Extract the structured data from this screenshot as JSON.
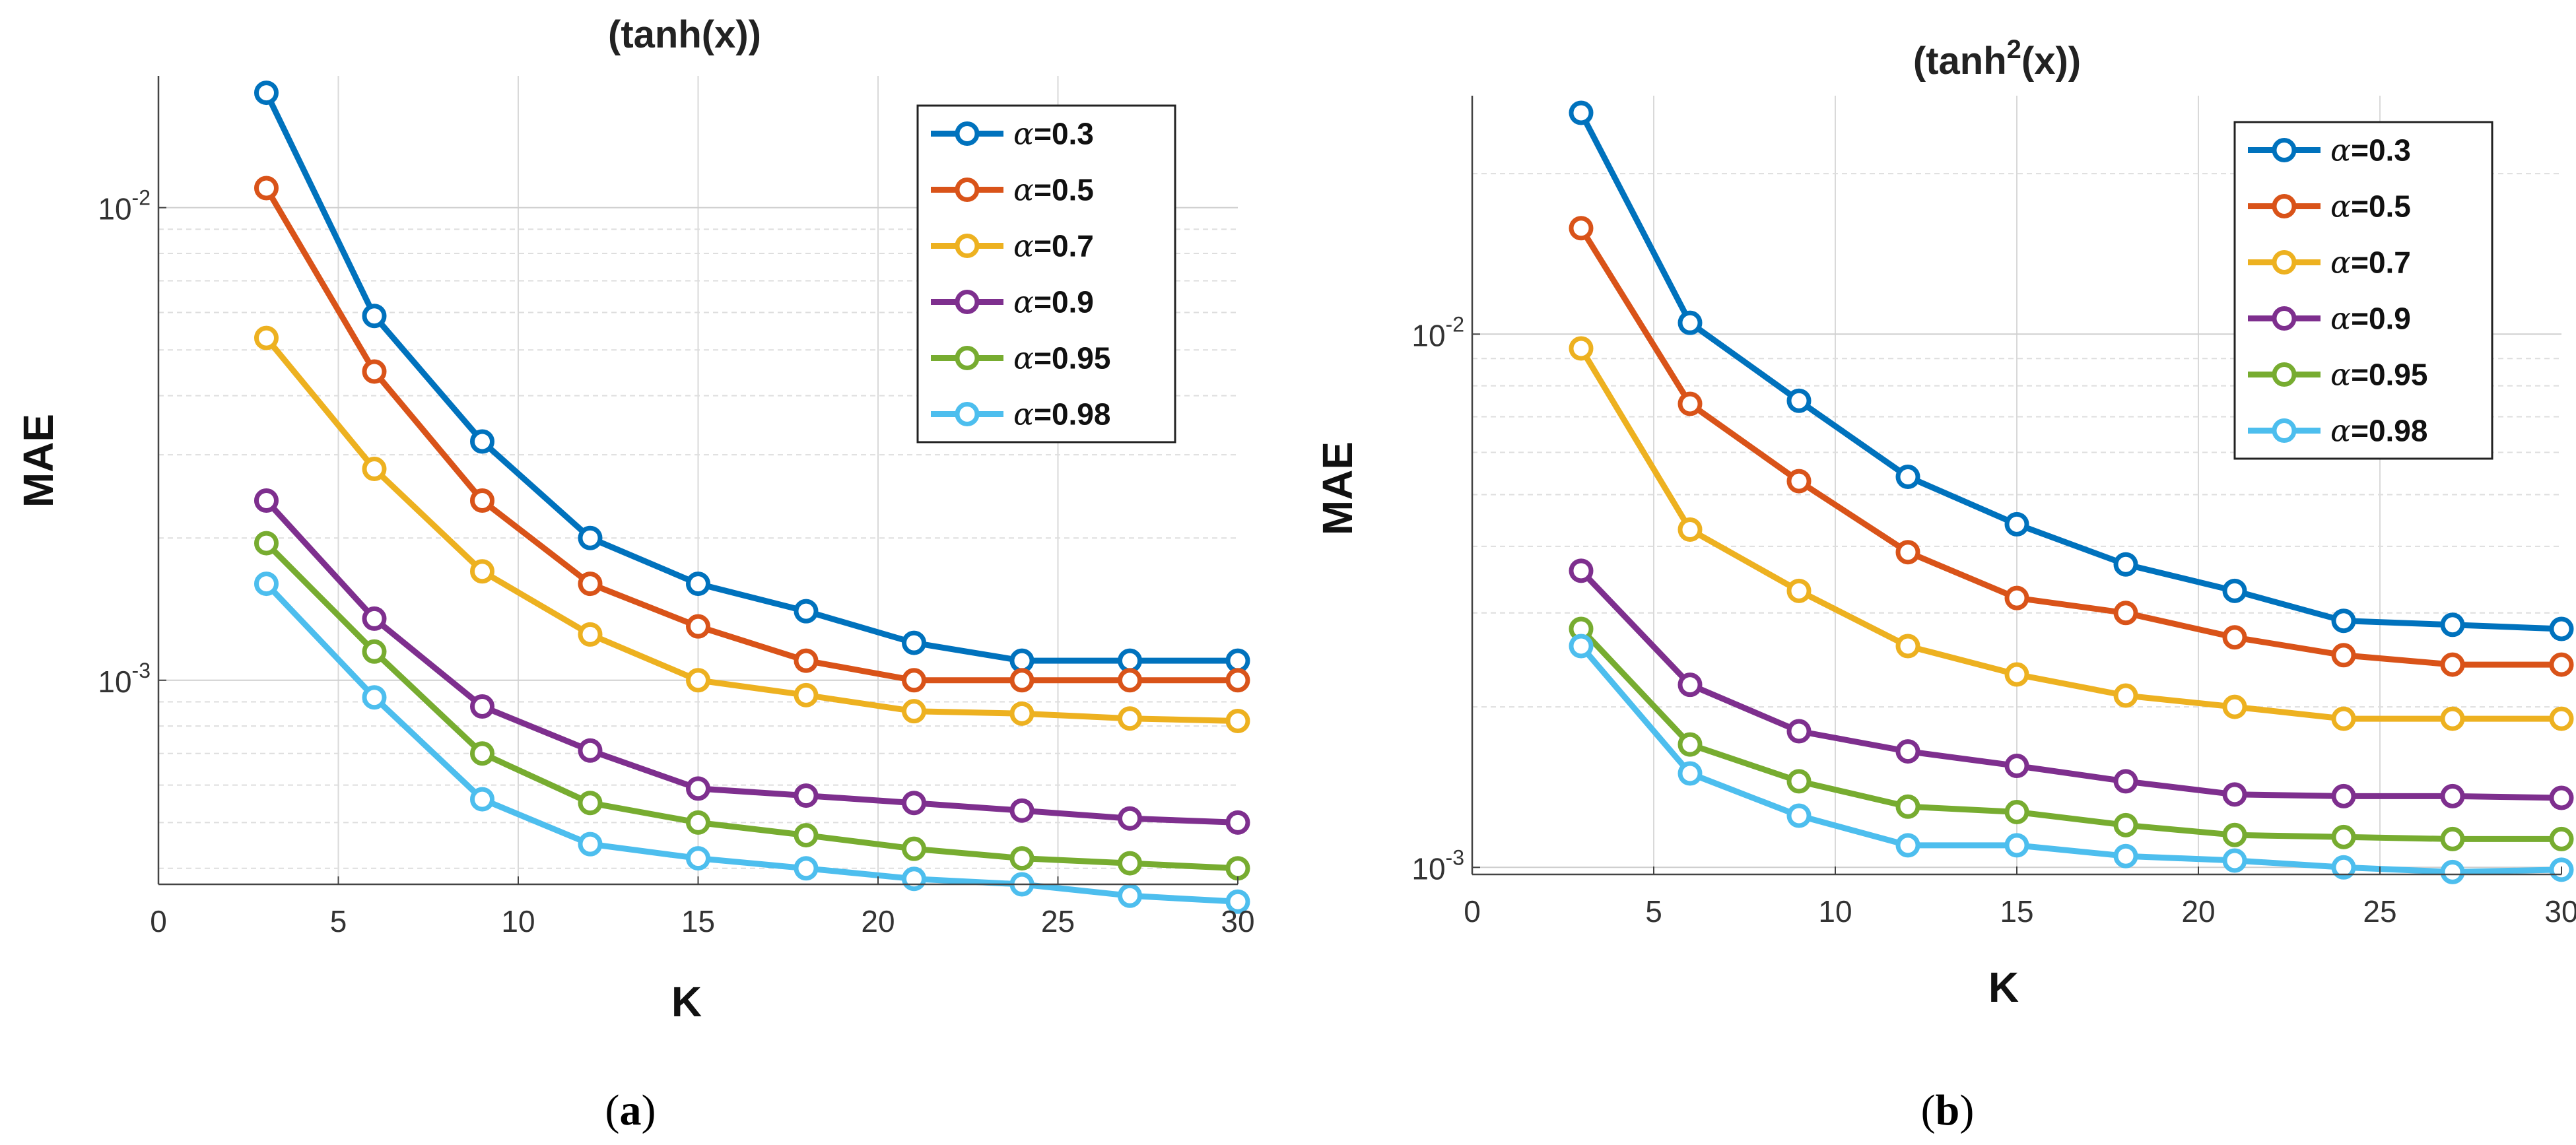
{
  "chart_data": [
    {
      "type": "line",
      "title_base": "(tanh(x))",
      "title_sup": "",
      "xlabel": "K",
      "ylabel": "MAE",
      "yscale": "log",
      "xlim": [
        0,
        30
      ],
      "ylim": [
        0.00037,
        0.019
      ],
      "grid": true,
      "legend_position": "top-right",
      "caption": "a",
      "x": [
        3,
        6,
        9,
        12,
        15,
        18,
        21,
        24,
        27,
        30
      ],
      "x_ticks": [
        "0",
        "5",
        "10",
        "15",
        "20",
        "25",
        "30"
      ],
      "y_ticks": [
        {
          "base": "10",
          "exp": "-3"
        },
        {
          "base": "10",
          "exp": "-2"
        }
      ],
      "series": [
        {
          "name": "=0.3",
          "symbol": "α",
          "color": "#0072BD",
          "values": [
            0.0175,
            0.0059,
            0.0032,
            0.002,
            0.0016,
            0.0014,
            0.0012,
            0.0011,
            0.0011,
            0.0011
          ]
        },
        {
          "name": "=0.5",
          "symbol": "α",
          "color": "#D95319",
          "values": [
            0.011,
            0.0045,
            0.0024,
            0.0016,
            0.0013,
            0.0011,
            0.001,
            0.001,
            0.001,
            0.001
          ]
        },
        {
          "name": "=0.7",
          "symbol": "α",
          "color": "#EDB120",
          "values": [
            0.0053,
            0.0028,
            0.0017,
            0.00125,
            0.001,
            0.00093,
            0.00086,
            0.00085,
            0.00083,
            0.00082
          ]
        },
        {
          "name": "=0.9",
          "symbol": "α",
          "color": "#7E2F8E",
          "values": [
            0.0024,
            0.00135,
            0.00088,
            0.00071,
            0.00059,
            0.00057,
            0.00055,
            0.00053,
            0.00051,
            0.0005
          ]
        },
        {
          "name": "=0.95",
          "symbol": "α",
          "color": "#77AC30",
          "values": [
            0.00195,
            0.00115,
            0.0007,
            0.00055,
            0.0005,
            0.00047,
            0.00044,
            0.00042,
            0.00041,
            0.0004
          ]
        },
        {
          "name": "=0.98",
          "symbol": "α",
          "color": "#4DBEEE",
          "values": [
            0.0016,
            0.00092,
            0.00056,
            0.00045,
            0.00042,
            0.0004,
            0.00038,
            0.00037,
            0.00035,
            0.00034
          ]
        }
      ]
    },
    {
      "type": "line",
      "title_base": "(tanh",
      "title_sup": "2",
      "title_end": "(x))",
      "xlabel": "K",
      "ylabel": "MAE",
      "yscale": "log",
      "xlim": [
        0,
        30
      ],
      "ylim": [
        0.00097,
        0.028
      ],
      "grid": true,
      "legend_position": "top-right",
      "caption": "b",
      "x": [
        3,
        6,
        9,
        12,
        15,
        18,
        21,
        24,
        27,
        30
      ],
      "x_ticks": [
        "0",
        "5",
        "10",
        "15",
        "20",
        "25",
        "30"
      ],
      "y_ticks": [
        {
          "base": "10",
          "exp": "-3"
        },
        {
          "base": "10",
          "exp": "-2"
        }
      ],
      "series": [
        {
          "name": "=0.3",
          "symbol": "α",
          "color": "#0072BD",
          "values": [
            0.026,
            0.0105,
            0.0075,
            0.0054,
            0.0044,
            0.0037,
            0.0033,
            0.0029,
            0.00285,
            0.0028
          ]
        },
        {
          "name": "=0.5",
          "symbol": "α",
          "color": "#D95319",
          "values": [
            0.0158,
            0.0074,
            0.0053,
            0.0039,
            0.0032,
            0.003,
            0.0027,
            0.0025,
            0.0024,
            0.0024
          ]
        },
        {
          "name": "=0.7",
          "symbol": "α",
          "color": "#EDB120",
          "values": [
            0.0094,
            0.0043,
            0.0033,
            0.0026,
            0.0023,
            0.0021,
            0.002,
            0.0019,
            0.0019,
            0.0019
          ]
        },
        {
          "name": "=0.9",
          "symbol": "α",
          "color": "#7E2F8E",
          "values": [
            0.0036,
            0.0022,
            0.0018,
            0.00165,
            0.00155,
            0.00145,
            0.00137,
            0.00136,
            0.00136,
            0.00135
          ]
        },
        {
          "name": "=0.95",
          "symbol": "α",
          "color": "#77AC30",
          "values": [
            0.0028,
            0.0017,
            0.00145,
            0.0013,
            0.00127,
            0.0012,
            0.00115,
            0.00114,
            0.00113,
            0.00113
          ]
        },
        {
          "name": "=0.98",
          "symbol": "α",
          "color": "#4DBEEE",
          "values": [
            0.0026,
            0.0015,
            0.00125,
            0.0011,
            0.0011,
            0.00105,
            0.00103,
            0.001,
            0.00098,
            0.00099
          ]
        }
      ]
    }
  ]
}
